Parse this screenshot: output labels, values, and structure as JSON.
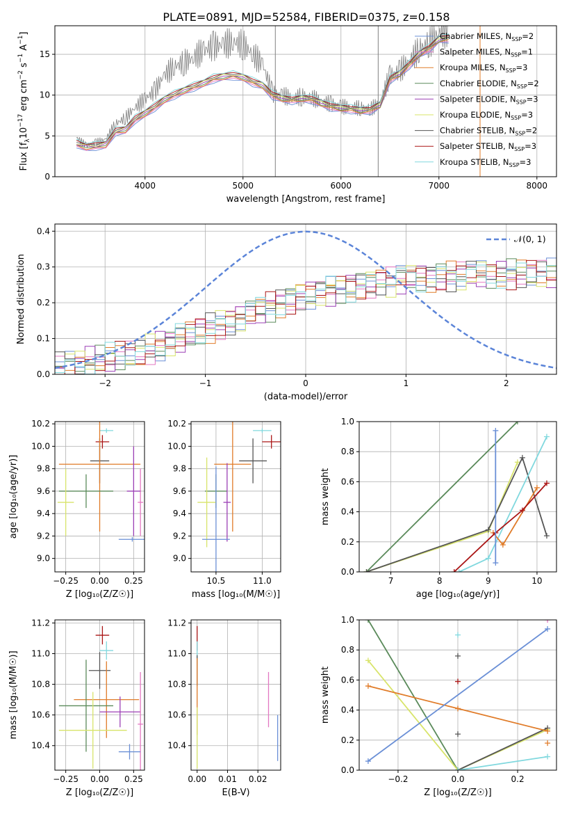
{
  "figure_title": "PLATE=0891, MJD=52584, FIBERID=0375, z=0.158",
  "colors": {
    "Chabrier MILES": "#6a8fd6",
    "Salpeter MILES": "#e377c2",
    "Kroupa MILES": "#e07b28",
    "Chabrier ELODIE": "#5a8a5a",
    "Salpeter ELODIE": "#9b3fb5",
    "Kroupa ELODIE": "#d8e46a",
    "Chabrier STELIB": "#555555",
    "Salpeter STELIB": "#aa1515",
    "Kroupa STELIB": "#80d8de",
    "data": "#808080",
    "gauss": "#5b84d8"
  },
  "chart_data": [
    {
      "id": "spectrum",
      "type": "line",
      "title": "PLATE=0891, MJD=52584, FIBERID=0375, z=0.158",
      "xlabel": "wavelength [Angstrom, rest frame]",
      "ylabel_main": "Flux [f",
      "ylabel_sub": "λ",
      "ylabel_rest": "10",
      "ylabel_exp": "−17",
      "ylabel_tail": " erg cm",
      "ylabel_exp2": "−2",
      "ylabel_tail2": " s",
      "ylabel_exp3": "−1",
      "ylabel_tail3": " A",
      "ylabel_exp4": "−1",
      "ylabel_end": "]",
      "xlim": [
        3080,
        8200
      ],
      "ylim": [
        0,
        18.5
      ],
      "xticks": [
        "4000",
        "5000",
        "6000",
        "7000",
        "8000"
      ],
      "yticks": [
        "0",
        "5",
        "10",
        "15"
      ],
      "legend_position": "top-right",
      "legend": [
        {
          "name": "Chabrier MILES",
          "nssp": "2"
        },
        {
          "name": "Salpeter MILES",
          "nssp": "1"
        },
        {
          "name": "Kroupa MILES",
          "nssp": "3"
        },
        {
          "name": "Chabrier ELODIE",
          "nssp": "2"
        },
        {
          "name": "Salpeter ELODIE",
          "nssp": "3"
        },
        {
          "name": "Kroupa ELODIE",
          "nssp": "3"
        },
        {
          "name": "Chabrier STELIB",
          "nssp": "2"
        },
        {
          "name": "Salpeter STELIB",
          "nssp": "3"
        },
        {
          "name": "Kroupa STELIB",
          "nssp": "3"
        }
      ],
      "model_x": [
        3300,
        3400,
        3500,
        3600,
        3700,
        3800,
        3900,
        4000,
        4100,
        4200,
        4300,
        4400,
        4500,
        4600,
        4700,
        4800,
        4900,
        5000,
        5100,
        5200,
        5300,
        5400,
        5500,
        5600,
        5700,
        5800,
        5900,
        6000,
        6100,
        6200,
        6300,
        6400,
        6500,
        6600,
        6700,
        6800,
        6900,
        7000,
        7100
      ],
      "model_y": [
        4.0,
        3.7,
        3.7,
        4.0,
        5.5,
        5.8,
        7.0,
        7.8,
        8.5,
        9.5,
        10.0,
        10.6,
        11.0,
        11.5,
        12.0,
        12.3,
        12.4,
        12.2,
        11.6,
        11.2,
        10.0,
        9.6,
        9.4,
        9.6,
        9.5,
        9.0,
        8.6,
        8.4,
        8.3,
        8.1,
        8.2,
        8.8,
        12.0,
        12.6,
        13.8,
        15.0,
        15.8,
        16.8,
        17.0
      ],
      "data_y": [
        4.8,
        3.8,
        4.2,
        4.6,
        6.5,
        7.2,
        8.5,
        9.5,
        10.5,
        12.5,
        13.5,
        14.0,
        14.6,
        15.5,
        16.0,
        16.2,
        16.5,
        16.2,
        15.0,
        13.8,
        10.2,
        10.0,
        9.6,
        9.8,
        9.7,
        9.2,
        8.9,
        8.6,
        8.5,
        8.4,
        8.3,
        9.0,
        12.4,
        13.0,
        14.2,
        15.6,
        16.4,
        17.6,
        17.8
      ],
      "vlines": [
        5330,
        6380,
        7420
      ]
    },
    {
      "id": "residuals",
      "type": "line",
      "xlabel": "(data-model)/error",
      "ylabel": "Normed distribution",
      "xlim": [
        -2.5,
        2.5
      ],
      "ylim": [
        0,
        0.42
      ],
      "xticks": [
        "−2",
        "−1",
        "0",
        "1",
        "2"
      ],
      "yticks": [
        "0.0",
        "0.1",
        "0.2",
        "0.3",
        "0.4"
      ],
      "legend_position": "top-right",
      "legend": [
        "𝒩(0, 1)"
      ],
      "bin_edges_start": -2.5,
      "bin_width": 0.1,
      "hist_trend": [
        0.02,
        0.025,
        0.03,
        0.035,
        0.04,
        0.045,
        0.05,
        0.055,
        0.06,
        0.07,
        0.08,
        0.09,
        0.1,
        0.11,
        0.12,
        0.13,
        0.14,
        0.15,
        0.16,
        0.17,
        0.18,
        0.19,
        0.2,
        0.21,
        0.22,
        0.225,
        0.23,
        0.235,
        0.24,
        0.245,
        0.25,
        0.255,
        0.26,
        0.26,
        0.265,
        0.27,
        0.27,
        0.27,
        0.275,
        0.275,
        0.275,
        0.28,
        0.28,
        0.28,
        0.28,
        0.28,
        0.28,
        0.28,
        0.28,
        0.28
      ]
    },
    {
      "id": "age-vs-Z",
      "type": "scatter",
      "xlabel": "Z [log₁₀(Z/Z☉)]",
      "ylabel": "age  [log₁₀(age/yr)]",
      "xlim": [
        -0.33,
        0.33
      ],
      "ylim": [
        8.88,
        10.22
      ],
      "xticks": [
        "−0.25",
        "0.00",
        "0.25"
      ],
      "yticks": [
        "9.0",
        "9.2",
        "9.4",
        "9.6",
        "9.8",
        "10.0",
        "10.2"
      ],
      "points": [
        {
          "series": "Kroupa STELIB",
          "x": 0.05,
          "y": 10.14,
          "xe": 0.05,
          "ye": 0.02
        },
        {
          "series": "Salpeter STELIB",
          "x": 0.02,
          "y": 10.04,
          "xe": 0.05,
          "ye": 0.06
        },
        {
          "series": "Chabrier STELIB",
          "x": 0.0,
          "y": 9.87,
          "xe": 0.07,
          "ye": 0.2
        },
        {
          "series": "Kroupa MILES",
          "x": 0.0,
          "y": 9.84,
          "xe": 0.3,
          "ye": 0.6
        },
        {
          "series": "Salpeter MILES",
          "x": 0.3,
          "y": 9.5,
          "xe": 0.02,
          "ye": 0.3
        },
        {
          "series": "Chabrier ELODIE",
          "x": -0.1,
          "y": 9.6,
          "xe": 0.2,
          "ye": 0.15
        },
        {
          "series": "Kroupa ELODIE",
          "x": -0.25,
          "y": 9.5,
          "xe": 0.06,
          "ye": 0.3
        },
        {
          "series": "Salpeter ELODIE",
          "x": 0.25,
          "y": 9.6,
          "xe": 0.05,
          "ye": 0.4
        },
        {
          "series": "Chabrier MILES",
          "x": 0.24,
          "y": 9.17,
          "xe": 0.1,
          "ye": 0.02
        }
      ]
    },
    {
      "id": "age-vs-mass",
      "type": "scatter",
      "xlabel": "mass [log₁₀(M/M☉)]",
      "xlim": [
        10.23,
        11.2
      ],
      "ylim": [
        8.88,
        10.22
      ],
      "xticks": [
        "10.5",
        "11.0"
      ],
      "yticks": [
        "9.0",
        "9.2",
        "9.4",
        "9.6",
        "9.8",
        "10.0",
        "10.2"
      ],
      "points": [
        {
          "series": "Kroupa STELIB",
          "x": 11.0,
          "y": 10.14,
          "xe": 0.1,
          "ye": 0.02
        },
        {
          "series": "Salpeter STELIB",
          "x": 11.1,
          "y": 10.04,
          "xe": 0.1,
          "ye": 0.06
        },
        {
          "series": "Chabrier STELIB",
          "x": 10.9,
          "y": 9.87,
          "xe": 0.15,
          "ye": 0.2
        },
        {
          "series": "Kroupa MILES",
          "x": 10.68,
          "y": 9.84,
          "xe": 0.2,
          "ye": 0.6
        },
        {
          "series": "Chabrier ELODIE",
          "x": 10.5,
          "y": 9.6,
          "xe": 0.12,
          "ye": 0.15
        },
        {
          "series": "Kroupa ELODIE",
          "x": 10.4,
          "y": 9.5,
          "xe": 0.1,
          "ye": 0.4
        },
        {
          "series": "Salpeter ELODIE",
          "x": 10.62,
          "y": 9.5,
          "xe": 0.04,
          "ye": 0.35
        },
        {
          "series": "Chabrier MILES",
          "x": 10.5,
          "y": 9.17,
          "xe": 0.15,
          "ye": 0.65
        }
      ]
    },
    {
      "id": "weight-vs-age",
      "type": "line",
      "xlabel": "age  [log₁₀(age/yr)]",
      "ylabel": "mass weight",
      "xlim": [
        6.35,
        10.4
      ],
      "ylim": [
        0,
        1.0
      ],
      "xticks": [
        "7",
        "8",
        "9",
        "10"
      ],
      "yticks": [
        "0.0",
        "0.2",
        "0.4",
        "0.6",
        "0.8",
        "1.0"
      ],
      "series": [
        {
          "name": "Chabrier ELODIE",
          "x": [
            6.5,
            9.6
          ],
          "y": [
            0.0,
            1.0
          ]
        },
        {
          "name": "Kroupa ELODIE",
          "x": [
            6.5,
            9.0,
            9.6
          ],
          "y": [
            0.0,
            0.27,
            0.73
          ]
        },
        {
          "name": "Chabrier STELIB",
          "x": [
            6.5,
            9.0,
            9.7,
            10.2
          ],
          "y": [
            0.0,
            0.28,
            0.76,
            0.24
          ]
        },
        {
          "name": "Kroupa STELIB",
          "x": [
            8.4,
            9.0,
            10.2
          ],
          "y": [
            0.0,
            0.09,
            0.9
          ]
        },
        {
          "name": "Kroupa MILES",
          "x": [
            9.1,
            9.3,
            10.0
          ],
          "y": [
            0.26,
            0.18,
            0.56
          ]
        },
        {
          "name": "Salpeter STELIB",
          "x": [
            8.3,
            9.15,
            9.7,
            10.2
          ],
          "y": [
            0.0,
            0.26,
            0.41,
            0.59
          ]
        },
        {
          "name": "Chabrier MILES",
          "x": [
            9.15,
            9.15
          ],
          "y": [
            0.06,
            0.94
          ]
        }
      ]
    },
    {
      "id": "mass-vs-Z",
      "type": "scatter",
      "xlabel": "Z [log₁₀(Z/Z☉)]",
      "ylabel": "mass [log₁₀(M/M☉)]",
      "xlim": [
        -0.33,
        0.33
      ],
      "ylim": [
        10.24,
        11.22
      ],
      "xticks": [
        "−0.25",
        "0.00",
        "0.25"
      ],
      "yticks": [
        "10.4",
        "10.6",
        "10.8",
        "11.0",
        "11.2"
      ],
      "points": [
        {
          "series": "Salpeter STELIB",
          "x": 0.02,
          "y": 11.12,
          "xe": 0.05,
          "ye": 0.06
        },
        {
          "series": "Kroupa STELIB",
          "x": 0.05,
          "y": 11.02,
          "xe": 0.05,
          "ye": 0.06
        },
        {
          "series": "Chabrier STELIB",
          "x": 0.0,
          "y": 10.89,
          "xe": 0.08,
          "ye": 0.12
        },
        {
          "series": "Kroupa MILES",
          "x": 0.05,
          "y": 10.7,
          "xe": 0.24,
          "ye": 0.25
        },
        {
          "series": "Chabrier ELODIE",
          "x": -0.1,
          "y": 10.66,
          "xe": 0.2,
          "ye": 0.3
        },
        {
          "series": "Salpeter ELODIE",
          "x": 0.15,
          "y": 10.62,
          "xe": 0.15,
          "ye": 0.1
        },
        {
          "series": "Kroupa ELODIE",
          "x": -0.05,
          "y": 10.5,
          "xe": 0.25,
          "ye": 0.25
        },
        {
          "series": "Salpeter MILES",
          "x": 0.3,
          "y": 10.54,
          "xe": 0.02,
          "ye": 0.34
        },
        {
          "series": "Chabrier MILES",
          "x": 0.22,
          "y": 10.36,
          "xe": 0.08,
          "ye": 0.05
        }
      ]
    },
    {
      "id": "mass-vs-ebv",
      "type": "scatter",
      "xlabel": "E(B-V)",
      "xlim": [
        -0.002,
        0.0275
      ],
      "ylim": [
        10.24,
        11.22
      ],
      "xticks": [
        "0.00",
        "0.01",
        "0.02"
      ],
      "yticks": [
        "10.4",
        "10.6",
        "10.8",
        "11.0",
        "11.2"
      ],
      "points": [
        {
          "series": "Salpeter STELIB",
          "x": 0.0,
          "y": 11.1,
          "xe": 0.0,
          "ye": 0.08
        },
        {
          "series": "Kroupa STELIB",
          "x": 0.0,
          "y": 11.0,
          "xe": 0.0,
          "ye": 0.08
        },
        {
          "series": "Chabrier STELIB",
          "x": 0.0,
          "y": 10.89,
          "xe": 0.0,
          "ye": 0.1
        },
        {
          "series": "Kroupa MILES",
          "x": 0.0,
          "y": 10.72,
          "xe": 0.0,
          "ye": 0.25
        },
        {
          "series": "Kroupa ELODIE",
          "x": 0.0,
          "y": 10.45,
          "xe": 0.0,
          "ye": 0.2
        },
        {
          "series": "Salpeter MILES",
          "x": 0.0235,
          "y": 10.7,
          "xe": 0.0,
          "ye": 0.18
        },
        {
          "series": "Chabrier MILES",
          "x": 0.0265,
          "y": 10.45,
          "xe": 0.0,
          "ye": 0.15
        }
      ]
    },
    {
      "id": "weight-vs-Z",
      "type": "line",
      "xlabel": "Z [log₁₀(Z/Z☉)]",
      "ylabel": "mass weight",
      "xlim": [
        -0.33,
        0.33
      ],
      "ylim": [
        0,
        1.0
      ],
      "xticks": [
        "−0.2",
        "0.0",
        "0.2"
      ],
      "yticks": [
        "0.0",
        "0.2",
        "0.4",
        "0.6",
        "0.8",
        "1.0"
      ],
      "series": [
        {
          "name": "Chabrier ELODIE",
          "x": [
            -0.3,
            0.0
          ],
          "y": [
            1.0,
            0.0
          ]
        },
        {
          "name": "Kroupa ELODIE",
          "x": [
            -0.3,
            0.0,
            0.3
          ],
          "y": [
            0.73,
            0.0,
            0.27
          ]
        },
        {
          "name": "Chabrier STELIB",
          "x": [
            0.0,
            0.3
          ],
          "y": [
            0.0,
            0.28
          ]
        },
        {
          "name": "Kroupa STELIB",
          "x": [
            0.0,
            0.3
          ],
          "y": [
            0.0,
            0.09
          ]
        },
        {
          "name": "Kroupa MILES",
          "x": [
            -0.3,
            0.3
          ],
          "y": [
            0.56,
            0.26
          ]
        },
        {
          "name": "Chabrier MILES",
          "x": [
            -0.3,
            0.3
          ],
          "y": [
            0.06,
            0.94
          ]
        }
      ],
      "markers": [
        {
          "series": "Kroupa STELIB",
          "x": 0.0,
          "y": 0.9
        },
        {
          "series": "Chabrier STELIB",
          "x": 0.0,
          "y": 0.76
        },
        {
          "series": "Salpeter STELIB",
          "x": 0.0,
          "y": 0.59
        },
        {
          "series": "Kroupa MILES",
          "x": 0.0,
          "y": 0.41
        },
        {
          "series": "Chabrier STELIB",
          "x": 0.0,
          "y": 0.24
        },
        {
          "series": "Kroupa MILES",
          "x": 0.3,
          "y": 0.18
        },
        {
          "series": "Salpeter MILES",
          "x": 0.3,
          "y": 1.0
        }
      ]
    }
  ]
}
